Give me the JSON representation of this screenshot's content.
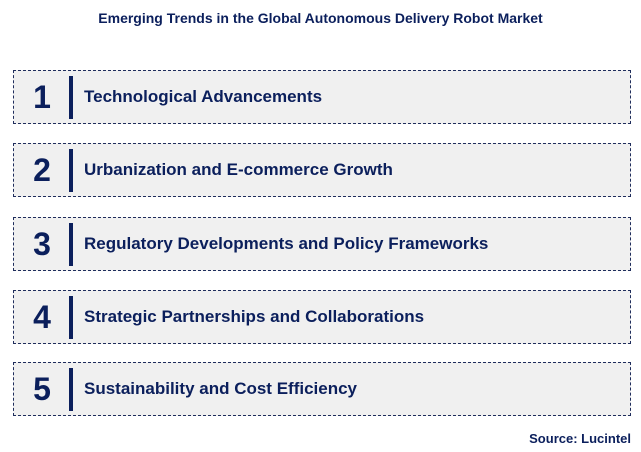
{
  "title": "Emerging Trends in the Global Autonomous Delivery Robot Market",
  "items": [
    {
      "number": "1",
      "label": "Technological Advancements"
    },
    {
      "number": "2",
      "label": "Urbanization and E-commerce Growth"
    },
    {
      "number": "3",
      "label": "Regulatory Developments and Policy Frameworks"
    },
    {
      "number": "4",
      "label": "Strategic Partnerships and Collaborations"
    },
    {
      "number": "5",
      "label": "Sustainability and Cost Efficiency"
    }
  ],
  "source": "Source: Lucintel",
  "colors": {
    "text": "#0b1f5c",
    "box_fill": "#f0f0f0",
    "border": "#1f2d5c"
  }
}
